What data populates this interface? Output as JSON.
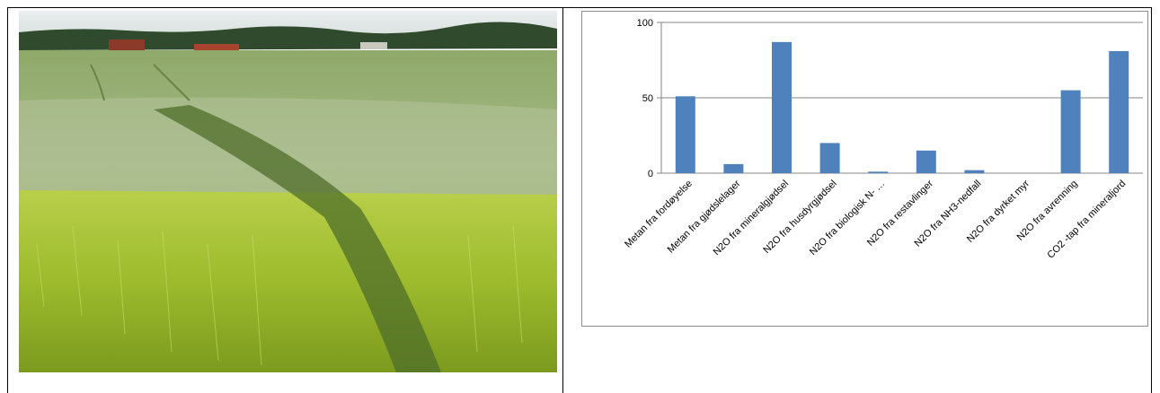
{
  "colors": {
    "bar": "#4F81BD",
    "grid": "#868686",
    "axis": "#868686"
  },
  "chart_data": {
    "type": "bar",
    "title": "",
    "xlabel": "",
    "ylabel": "",
    "ylim": [
      0,
      100
    ],
    "yticks": [
      0,
      50,
      100
    ],
    "grid": true,
    "legend": "none",
    "categories": [
      "Metan fra fordøyelse",
      "Metan fra gjødslelager",
      "N2O fra mineralgjødsel",
      "N2O fra husdyrgjødsel",
      "N2O fra biologisk N- …",
      "N2O fra restavlinger",
      "N2O fra NH3-nedfall",
      "N2O fra dyrket myr",
      "N2O fra avrenning",
      "CO2 -tap fra mineraljord"
    ],
    "values": [
      51,
      6,
      87,
      20,
      1,
      15,
      2,
      0,
      55,
      81
    ]
  }
}
